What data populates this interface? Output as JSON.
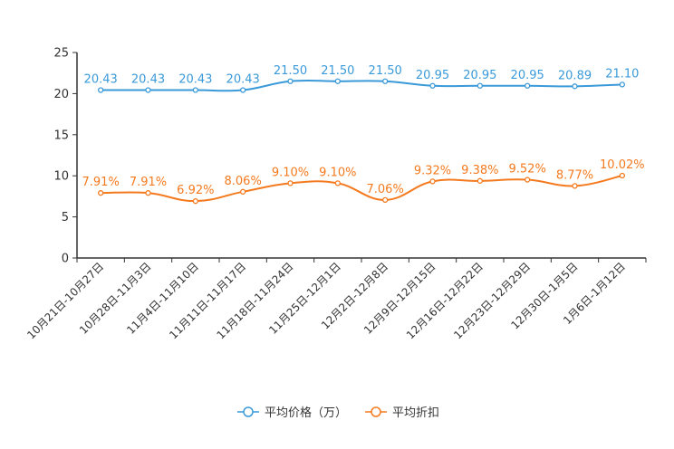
{
  "chart_data": {
    "type": "line",
    "title": "",
    "xlabel": "",
    "ylabel": "",
    "ylim": [
      0,
      25
    ],
    "yticks": [
      0,
      5,
      10,
      15,
      20,
      25
    ],
    "grid": false,
    "legend_position": "bottom-center",
    "categories": [
      "10月21日-10月27日",
      "10月28日-11月3日",
      "11月4日-11月10日",
      "11月11日-11月17日",
      "11月18日-11月24日",
      "11月25日-12月1日",
      "12月2日-12月8日",
      "12月9日-12月15日",
      "12月16日-12月22日",
      "12月23日-12月29日",
      "12月30日-1月5日",
      "1月6日-1月12日"
    ],
    "series": [
      {
        "name": "平均价格（万）",
        "color": "#3a9ad9",
        "values": [
          20.43,
          20.43,
          20.43,
          20.43,
          21.5,
          21.5,
          21.5,
          20.95,
          20.95,
          20.95,
          20.89,
          21.1
        ],
        "labels": [
          "20.43",
          "20.43",
          "20.43",
          "20.43",
          "21.50",
          "21.50",
          "21.50",
          "20.95",
          "20.95",
          "20.95",
          "20.89",
          "21.10"
        ]
      },
      {
        "name": "平均折扣",
        "color": "#f47a1f",
        "values": [
          7.91,
          7.91,
          6.92,
          8.06,
          9.1,
          9.1,
          7.06,
          9.32,
          9.38,
          9.52,
          8.77,
          10.02
        ],
        "labels": [
          "7.91%",
          "7.91%",
          "6.92%",
          "8.06%",
          "9.10%",
          "9.10%",
          "7.06%",
          "9.32%",
          "9.38%",
          "9.52%",
          "8.77%",
          "10.02%"
        ]
      }
    ]
  }
}
